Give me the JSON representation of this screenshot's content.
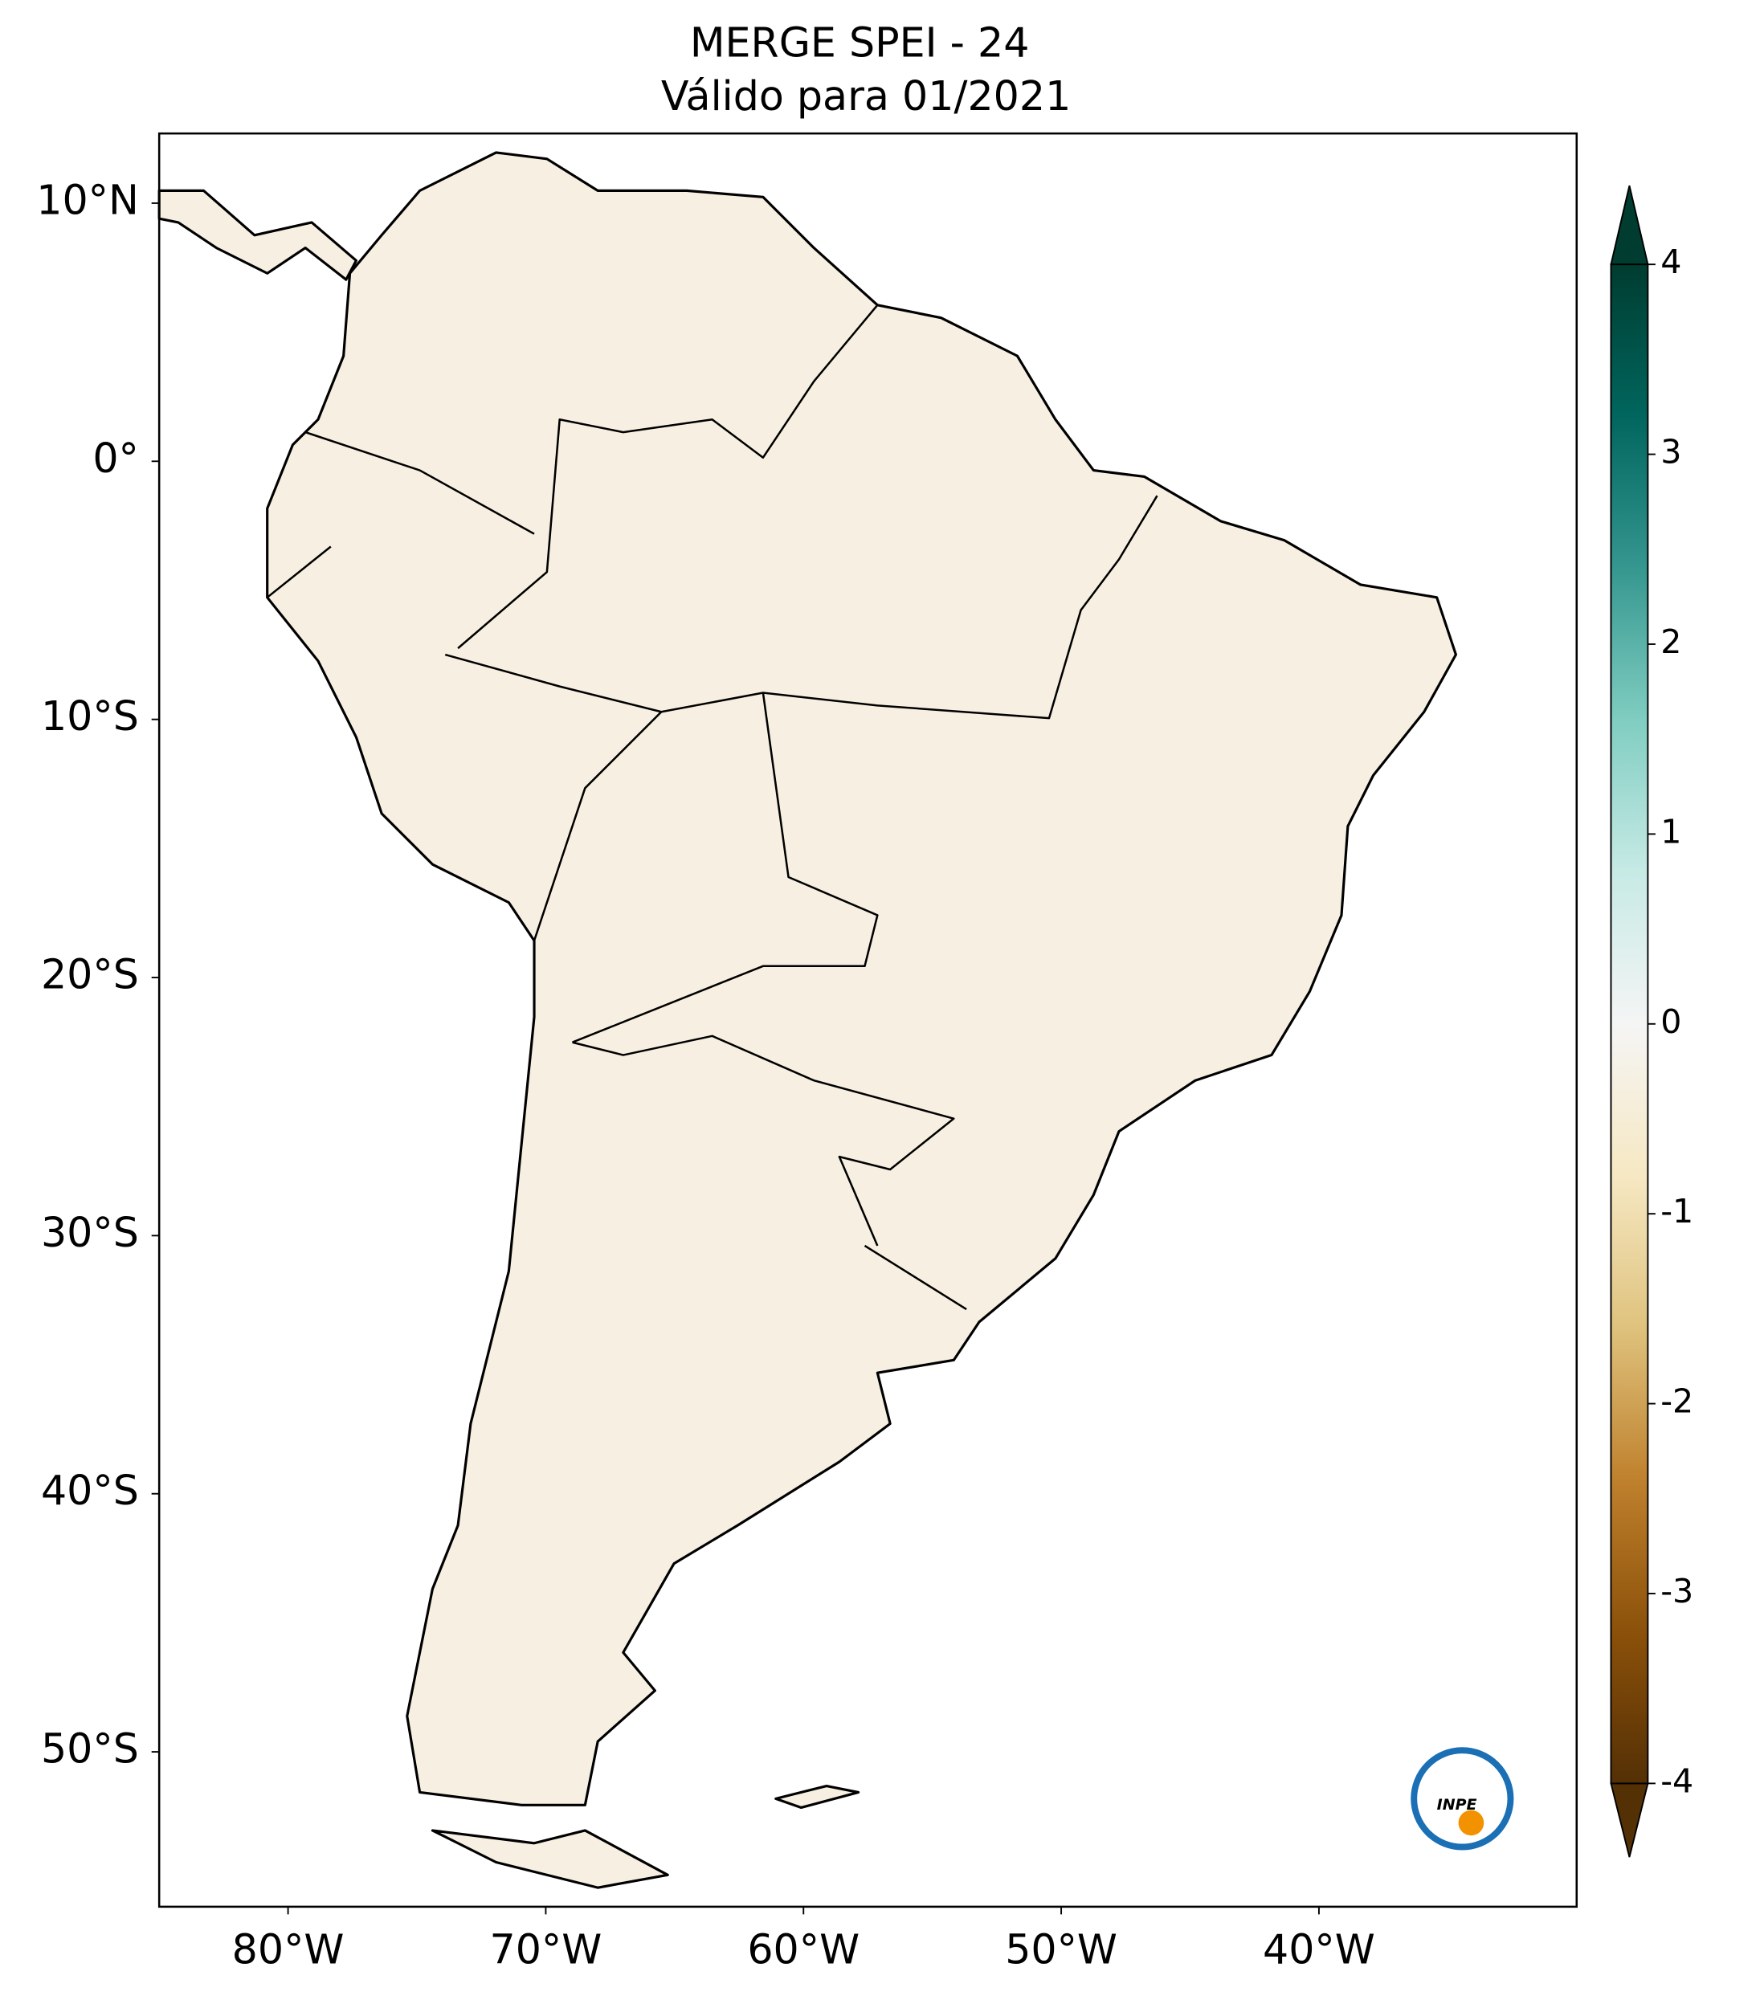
{
  "chart_data": {
    "type": "map",
    "title": "MERGE   SPEI - 24",
    "subtitle": "Válido para 01/2021",
    "xlim": [
      -85,
      -30
    ],
    "ylim": [
      -56,
      12.7
    ],
    "xticks": [
      {
        "value": -80,
        "label": "80°W"
      },
      {
        "value": -70,
        "label": "70°W"
      },
      {
        "value": -60,
        "label": "60°W"
      },
      {
        "value": -50,
        "label": "50°W"
      },
      {
        "value": -40,
        "label": "40°W"
      }
    ],
    "yticks": [
      {
        "value": 10,
        "label": "10°N"
      },
      {
        "value": 0,
        "label": "0°"
      },
      {
        "value": -10,
        "label": "10°S"
      },
      {
        "value": -20,
        "label": "20°S"
      },
      {
        "value": -30,
        "label": "30°S"
      },
      {
        "value": -40,
        "label": "40°S"
      },
      {
        "value": -50,
        "label": "50°S"
      }
    ],
    "colorbar": {
      "lim": [
        -4,
        4
      ],
      "ticks": [
        -4,
        -3,
        -2,
        -1,
        0,
        1,
        2,
        3,
        4
      ],
      "colors": [
        "#543005",
        "#8c510a",
        "#bf812d",
        "#dfc27d",
        "#f6e8c3",
        "#f5f5f5",
        "#c7eae5",
        "#80cdc1",
        "#35978f",
        "#01665e",
        "#003c30"
      ]
    },
    "logo_text": "INPE"
  }
}
